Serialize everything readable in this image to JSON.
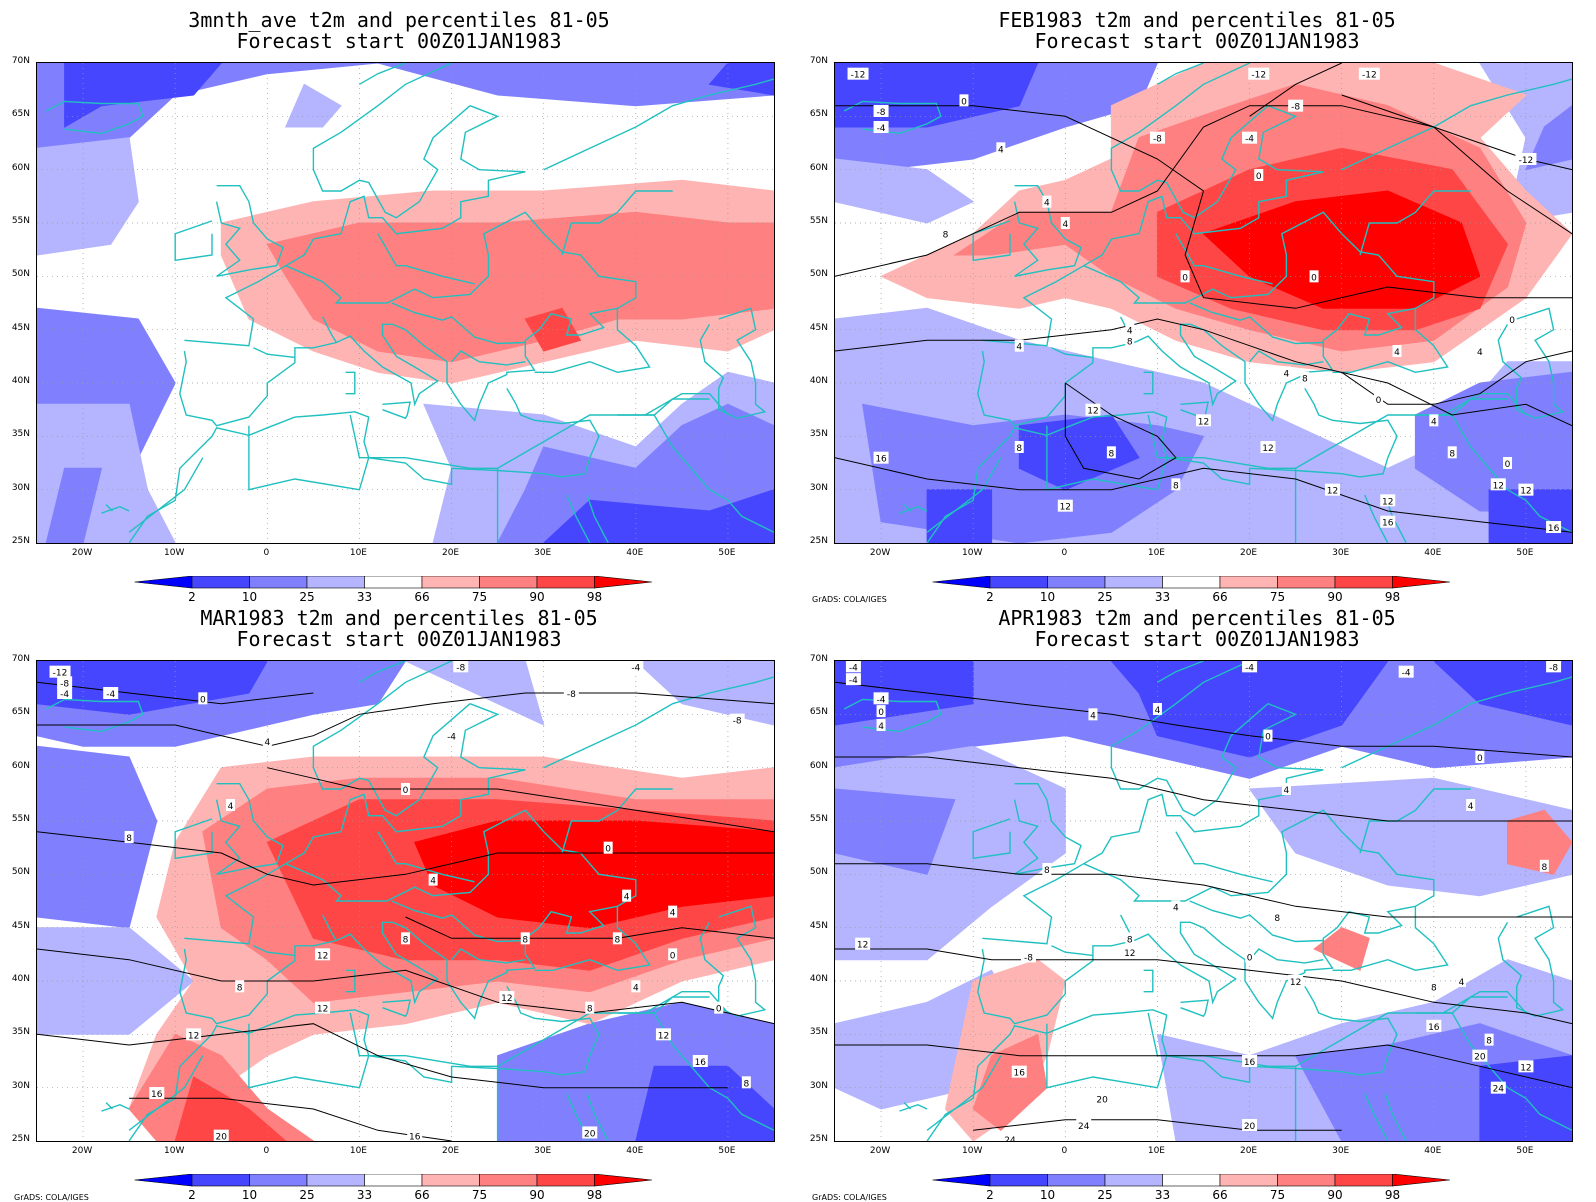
{
  "colorbar": {
    "labels": [
      "2",
      "10",
      "25",
      "33",
      "66",
      "75",
      "90",
      "98"
    ],
    "colors": [
      "#0000ff",
      "#4646ff",
      "#8080ff",
      "#b4b4ff",
      "#ffffff",
      "#ffb4b4",
      "#ff8080",
      "#ff4646",
      "#ff0000"
    ]
  },
  "axes": {
    "lat_labels": [
      "70N",
      "65N",
      "60N",
      "55N",
      "50N",
      "45N",
      "40N",
      "35N",
      "30N",
      "25N"
    ],
    "lon_labels": [
      "20W",
      "10W",
      "0",
      "10E",
      "20E",
      "30E",
      "40E",
      "50E"
    ],
    "lat_range": [
      25,
      70
    ],
    "lon_range": [
      -25,
      55
    ]
  },
  "credit_text": "GrADS: COLA/IGES",
  "panels": [
    {
      "title1": "3mnth_ave t2m and percentiles 81-05",
      "title2": "Forecast start 00Z01JAN1983",
      "show_credit": false,
      "contour_labels": []
    },
    {
      "title1": "FEB1983 t2m and percentiles 81-05",
      "title2": "Forecast start 00Z01JAN1983",
      "show_credit": true,
      "contour_labels": [
        {
          "text": "-12",
          "lon": -22.5,
          "lat": 69
        },
        {
          "text": "-8",
          "lon": -20,
          "lat": 65.5
        },
        {
          "text": "-4",
          "lon": -20,
          "lat": 64
        },
        {
          "text": "0",
          "lon": -11,
          "lat": 66.5
        },
        {
          "text": "4",
          "lon": -7,
          "lat": 62
        },
        {
          "text": "8",
          "lon": -13,
          "lat": 54
        },
        {
          "text": "-12",
          "lon": 21,
          "lat": 69
        },
        {
          "text": "-12",
          "lon": 33,
          "lat": 69
        },
        {
          "text": "-8",
          "lon": 25,
          "lat": 66
        },
        {
          "text": "-8",
          "lon": 10,
          "lat": 63
        },
        {
          "text": "-4",
          "lon": 20,
          "lat": 63
        },
        {
          "text": "0",
          "lon": 21,
          "lat": 59.5
        },
        {
          "text": "4",
          "lon": -2,
          "lat": 57
        },
        {
          "text": "4",
          "lon": 0,
          "lat": 55
        },
        {
          "text": "-12",
          "lon": 50,
          "lat": 61
        },
        {
          "text": "0",
          "lon": 13,
          "lat": 50
        },
        {
          "text": "0",
          "lon": 27,
          "lat": 50
        },
        {
          "text": "0",
          "lon": 48.5,
          "lat": 46
        },
        {
          "text": "4",
          "lon": 7,
          "lat": 45
        },
        {
          "text": "8",
          "lon": 7,
          "lat": 44
        },
        {
          "text": "4",
          "lon": -5,
          "lat": 43.5
        },
        {
          "text": "4",
          "lon": 36,
          "lat": 43
        },
        {
          "text": "4",
          "lon": 45,
          "lat": 43
        },
        {
          "text": "4",
          "lon": 24,
          "lat": 41
        },
        {
          "text": "8",
          "lon": 26,
          "lat": 40.5
        },
        {
          "text": "0",
          "lon": 34,
          "lat": 38.5
        },
        {
          "text": "4",
          "lon": 40,
          "lat": 36.5
        },
        {
          "text": "12",
          "lon": 3,
          "lat": 37.5
        },
        {
          "text": "12",
          "lon": 15,
          "lat": 36.5
        },
        {
          "text": "8",
          "lon": -5,
          "lat": 34
        },
        {
          "text": "8",
          "lon": 5,
          "lat": 33.5
        },
        {
          "text": "12",
          "lon": 22,
          "lat": 34
        },
        {
          "text": "8",
          "lon": 42,
          "lat": 33.5
        },
        {
          "text": "16",
          "lon": -20,
          "lat": 33
        },
        {
          "text": "0",
          "lon": 48,
          "lat": 32.5
        },
        {
          "text": "8",
          "lon": 12,
          "lat": 30.5
        },
        {
          "text": "12",
          "lon": 29,
          "lat": 30
        },
        {
          "text": "12",
          "lon": 47,
          "lat": 30.5
        },
        {
          "text": "12",
          "lon": 50,
          "lat": 30
        },
        {
          "text": "12",
          "lon": 0,
          "lat": 28.5
        },
        {
          "text": "12",
          "lon": 35,
          "lat": 29
        },
        {
          "text": "16",
          "lon": 35,
          "lat": 27
        },
        {
          "text": "16",
          "lon": 53,
          "lat": 26.5
        }
      ]
    },
    {
      "title1": "MAR1983 t2m and percentiles 81-05",
      "title2": "Forecast start 00Z01JAN1983",
      "show_credit": true,
      "contour_labels": [
        {
          "text": "-12",
          "lon": -22.5,
          "lat": 69
        },
        {
          "text": "-8",
          "lon": -22,
          "lat": 68
        },
        {
          "text": "-4",
          "lon": -22,
          "lat": 67
        },
        {
          "text": "-4",
          "lon": -17,
          "lat": 67
        },
        {
          "text": "0",
          "lon": -7,
          "lat": 66.5
        },
        {
          "text": "-8",
          "lon": 21,
          "lat": 69.5
        },
        {
          "text": "-4",
          "lon": 40,
          "lat": 69.5
        },
        {
          "text": "-8",
          "lon": 33,
          "lat": 67
        },
        {
          "text": "-8",
          "lon": 51,
          "lat": 64.5
        },
        {
          "text": "-4",
          "lon": 20,
          "lat": 63
        },
        {
          "text": "4",
          "lon": 0,
          "lat": 62.5
        },
        {
          "text": "0",
          "lon": 15,
          "lat": 58
        },
        {
          "text": "4",
          "lon": -4,
          "lat": 56.5
        },
        {
          "text": "8",
          "lon": -15,
          "lat": 53.5
        },
        {
          "text": "0",
          "lon": 37,
          "lat": 52.5
        },
        {
          "text": "4",
          "lon": 18,
          "lat": 49.5
        },
        {
          "text": "4",
          "lon": 39,
          "lat": 48
        },
        {
          "text": "4",
          "lon": 44,
          "lat": 46.5
        },
        {
          "text": "8",
          "lon": 15,
          "lat": 44
        },
        {
          "text": "8",
          "lon": 28,
          "lat": 44
        },
        {
          "text": "8",
          "lon": 38,
          "lat": 44
        },
        {
          "text": "12",
          "lon": 6,
          "lat": 42.5
        },
        {
          "text": "0",
          "lon": 44,
          "lat": 42.5
        },
        {
          "text": "8",
          "lon": -3,
          "lat": 39.5
        },
        {
          "text": "4",
          "lon": 40,
          "lat": 39.5
        },
        {
          "text": "12",
          "lon": 26,
          "lat": 38.5
        },
        {
          "text": "8",
          "lon": 35,
          "lat": 37.5
        },
        {
          "text": "12",
          "lon": 6,
          "lat": 37.5
        },
        {
          "text": "0",
          "lon": 49,
          "lat": 37.5
        },
        {
          "text": "12",
          "lon": -8,
          "lat": 35
        },
        {
          "text": "12",
          "lon": 43,
          "lat": 35
        },
        {
          "text": "16",
          "lon": 47,
          "lat": 32.5
        },
        {
          "text": "8",
          "lon": 52,
          "lat": 30.5
        },
        {
          "text": "16",
          "lon": -12,
          "lat": 29.5
        },
        {
          "text": "20",
          "lon": -5,
          "lat": 25.5
        },
        {
          "text": "16",
          "lon": 16,
          "lat": 25.5
        },
        {
          "text": "20",
          "lon": 35,
          "lat": 25.8
        }
      ]
    },
    {
      "title1": "APR1983 t2m and percentiles 81-05",
      "title2": "Forecast start 00Z01JAN1983",
      "show_credit": true,
      "contour_labels": [
        {
          "text": "-4",
          "lon": -23,
          "lat": 69.5
        },
        {
          "text": "-4",
          "lon": -23,
          "lat": 68.3
        },
        {
          "text": "-4",
          "lon": 20,
          "lat": 69.5
        },
        {
          "text": "-4",
          "lon": 37,
          "lat": 69
        },
        {
          "text": "-8",
          "lon": 53,
          "lat": 69.5
        },
        {
          "text": "-4",
          "lon": -20,
          "lat": 66.5
        },
        {
          "text": "0",
          "lon": -20,
          "lat": 65.3
        },
        {
          "text": "4",
          "lon": -20,
          "lat": 64
        },
        {
          "text": "4",
          "lon": 3,
          "lat": 65
        },
        {
          "text": "4",
          "lon": 10,
          "lat": 65.5
        },
        {
          "text": "0",
          "lon": 22,
          "lat": 63
        },
        {
          "text": "0",
          "lon": 45,
          "lat": 61
        },
        {
          "text": "4",
          "lon": 24,
          "lat": 58
        },
        {
          "text": "4",
          "lon": 44,
          "lat": 56.5
        },
        {
          "text": "8",
          "lon": 52,
          "lat": 50.8
        },
        {
          "text": "8",
          "lon": -2,
          "lat": 50.5
        },
        {
          "text": "4",
          "lon": 12,
          "lat": 47
        },
        {
          "text": "8",
          "lon": 23,
          "lat": 46
        },
        {
          "text": "12",
          "lon": -22,
          "lat": 43.5
        },
        {
          "text": "8",
          "lon": 7,
          "lat": 44
        },
        {
          "text": "12",
          "lon": 7,
          "lat": 42.7
        },
        {
          "text": "-8",
          "lon": -4,
          "lat": 42.3
        },
        {
          "text": "0",
          "lon": 20,
          "lat": 42.3
        },
        {
          "text": "12",
          "lon": 25,
          "lat": 40
        },
        {
          "text": "4",
          "lon": 43,
          "lat": 40
        },
        {
          "text": "8",
          "lon": 40,
          "lat": 39.5
        },
        {
          "text": "16",
          "lon": 40,
          "lat": 35.8
        },
        {
          "text": "8",
          "lon": 46,
          "lat": 34.5
        },
        {
          "text": "16",
          "lon": 20,
          "lat": 32.5
        },
        {
          "text": "20",
          "lon": 45,
          "lat": 33
        },
        {
          "text": "12",
          "lon": 50,
          "lat": 32
        },
        {
          "text": "16",
          "lon": -5,
          "lat": 31.5
        },
        {
          "text": "24",
          "lon": 47,
          "lat": 30
        },
        {
          "text": "20",
          "lon": 4,
          "lat": 29
        },
        {
          "text": "24",
          "lon": 2,
          "lat": 26.5
        },
        {
          "text": "20",
          "lon": 20,
          "lat": 26.5
        },
        {
          "text": "24",
          "lon": -6,
          "lat": 25.2
        }
      ]
    }
  ]
}
